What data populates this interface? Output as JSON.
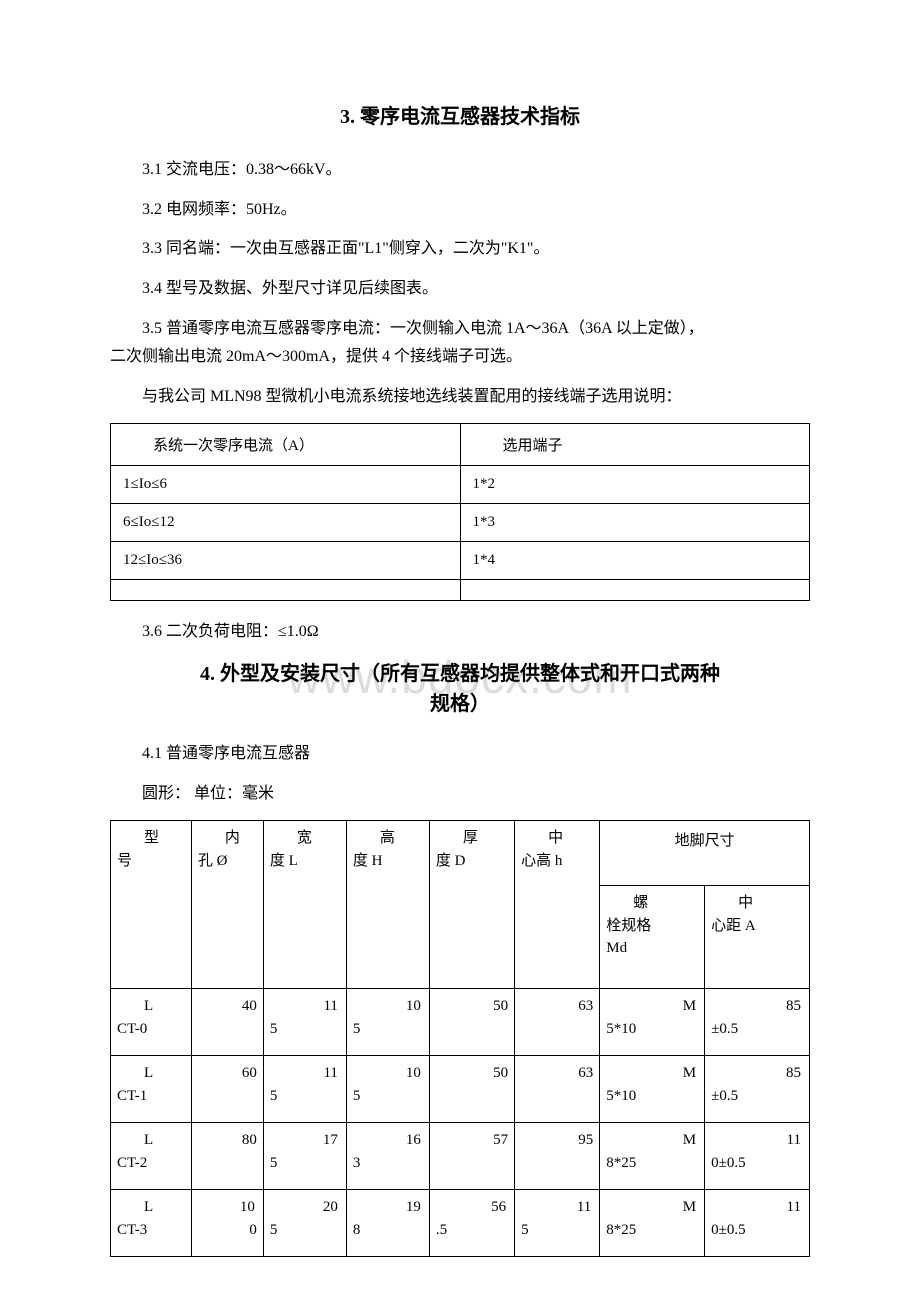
{
  "watermark": "www.bdocx.com",
  "section3": {
    "title": "3. 零序电流互感器技术指标",
    "p31": "3.1 交流电压：0.38～66kV。",
    "p32": "3.2 电网频率：50Hz。",
    "p33": "3.3 同名端：一次由互感器正面\"L1\"侧穿入，二次为\"K1\"。",
    "p34": "3.4 型号及数据、外型尺寸详见后续图表。",
    "p35a": "3.5 普通零序电流互感器零序电流：一次侧输入电流 1A～36A（36A 以上定做），",
    "p35b": "二次侧输出电流 20mA～300mA，提供 4 个接线端子可选。",
    "p35c": "与我公司 MLN98 型微机小电流系统接地选线装置配用的接线端子选用说明：",
    "terminal_table": {
      "col1_hdr": "系统一次零序电流（A）",
      "col2_hdr": "选用端子",
      "rows": [
        {
          "c1": "1≤Io≤6",
          "c2": "1*2"
        },
        {
          "c1": "6≤Io≤12",
          "c2": "1*3"
        },
        {
          "c1": "12≤Io≤36",
          "c2": "1*4"
        },
        {
          "c1": "",
          "c2": ""
        }
      ]
    },
    "p36": "3.6 二次负荷电阻：≤1.0Ω"
  },
  "section4": {
    "title_l1": "4. 外型及安装尺寸（所有互感器均提供整体式和开口式两种",
    "title_l2": "规格）",
    "p41": "4.1 普通零序电流互感器",
    "p41b": "圆形：  单位：毫米",
    "dims_table": {
      "group_foot": "地脚尺寸",
      "headers": {
        "model": {
          "l1": "型",
          "l2": "号"
        },
        "hole": {
          "l1": "内",
          "l2": "孔 Ø"
        },
        "width": {
          "l1": "宽",
          "l2": "度 L"
        },
        "height": {
          "l1": "高",
          "l2": "度 H"
        },
        "thick": {
          "l1": "厚",
          "l2": "度 D"
        },
        "center": {
          "l1": "中",
          "l2": "心高 h"
        },
        "bolt": {
          "l1": "螺",
          "l2": "栓规格",
          "l3": "Md"
        },
        "dist": {
          "l1": "中",
          "l2": "心距 A"
        }
      },
      "rows": [
        {
          "model": {
            "l1": "L",
            "l2": "CT-0"
          },
          "hole": "40",
          "width": {
            "a": "11",
            "b": "5"
          },
          "height": {
            "a": "10",
            "b": "5"
          },
          "thick": "50",
          "center": "63",
          "bolt": {
            "a": "M",
            "b": "5*10"
          },
          "dist": {
            "a": "85",
            "b": "±0.5"
          }
        },
        {
          "model": {
            "l1": "L",
            "l2": "CT-1"
          },
          "hole": "60",
          "width": {
            "a": "11",
            "b": "5"
          },
          "height": {
            "a": "10",
            "b": "5"
          },
          "thick": "50",
          "center": "63",
          "bolt": {
            "a": "M",
            "b": "5*10"
          },
          "dist": {
            "a": "85",
            "b": "±0.5"
          }
        },
        {
          "model": {
            "l1": "L",
            "l2": "CT-2"
          },
          "hole": "80",
          "width": {
            "a": "17",
            "b": "5"
          },
          "height": {
            "a": "16",
            "b": "3"
          },
          "thick": "57",
          "center": "95",
          "bolt": {
            "a": "M",
            "b": "8*25"
          },
          "dist": {
            "a": "11",
            "b": "0±0.5"
          }
        },
        {
          "model": {
            "l1": "L",
            "l2": "CT-3"
          },
          "hole": {
            "a": "10",
            "b": "0"
          },
          "width": {
            "a": "20",
            "b": "5"
          },
          "height": {
            "a": "19",
            "b": "8"
          },
          "thick": {
            "a": "56",
            "b": ".5"
          },
          "center": {
            "a": "11",
            "b": "5"
          },
          "bolt": {
            "a": "M",
            "b": "8*25"
          },
          "dist": {
            "a": "11",
            "b": "0±0.5"
          }
        }
      ],
      "col_widths": [
        "74",
        "66",
        "76",
        "76",
        "78",
        "78",
        "96",
        "96"
      ]
    }
  },
  "colors": {
    "text": "#000000",
    "border": "#000000",
    "watermark": "#dcdcdc",
    "background": "#ffffff"
  }
}
